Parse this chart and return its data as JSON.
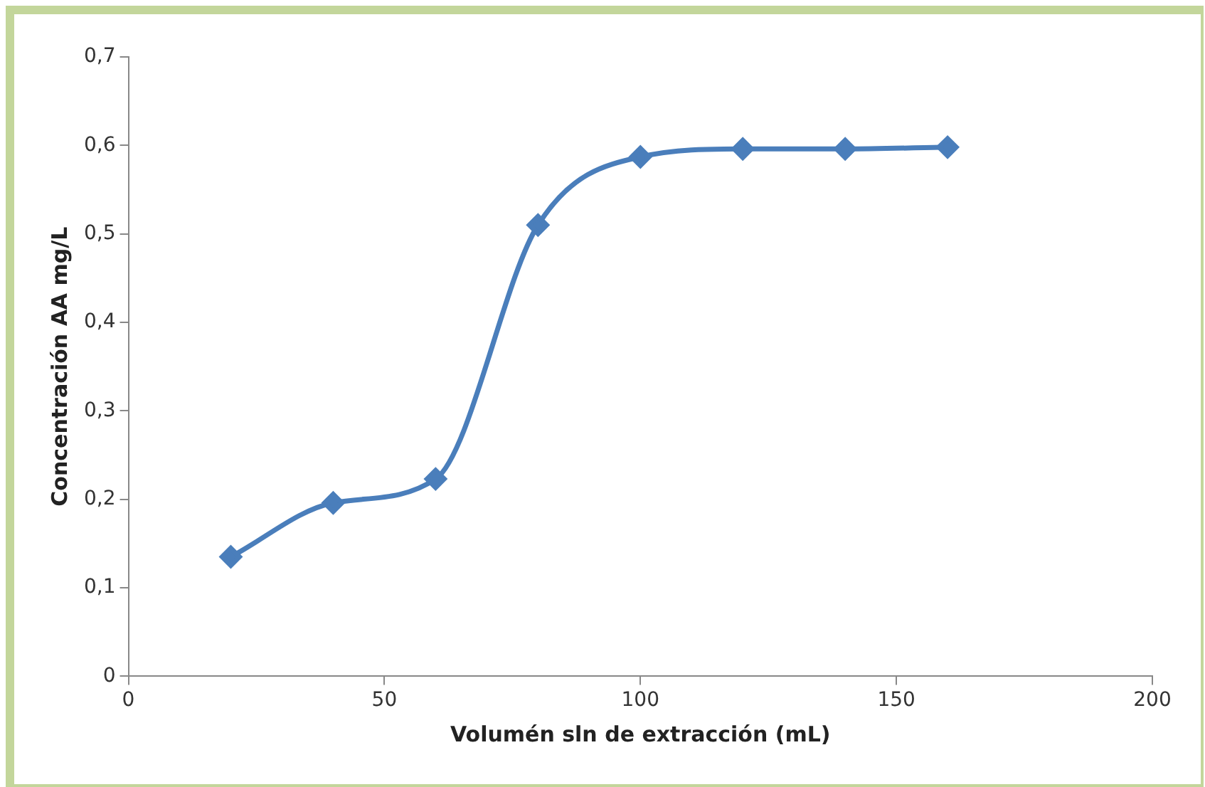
{
  "chart_data": {
    "type": "line",
    "xlabel": "Volumén sln de extracción (mL)",
    "ylabel": "Concentración AA mg/L",
    "x": [
      20,
      40,
      60,
      80,
      100,
      120,
      140,
      160
    ],
    "series": [
      {
        "color": "#4a7ebb",
        "values": [
          0.135,
          0.196,
          0.223,
          0.51,
          0.587,
          0.596,
          0.596,
          0.598
        ]
      }
    ],
    "xlim": [
      0,
      200
    ],
    "xticks": [
      0,
      50,
      100,
      150,
      200
    ],
    "ylim": [
      0,
      0.7
    ],
    "yticks": [
      0,
      {
        "value": 0.1,
        "label": "0,1"
      },
      {
        "value": 0.2,
        "label": "0,2"
      },
      {
        "value": 0.3,
        "label": "0,3"
      },
      {
        "value": 0.4,
        "label": "0,4"
      },
      {
        "value": 0.5,
        "label": "0,5"
      },
      {
        "value": 0.6,
        "label": "0,6"
      },
      {
        "value": 0.7,
        "label": "0,7"
      }
    ],
    "grid": false,
    "legend": false,
    "marker": "diamond",
    "line_style": "solid"
  }
}
